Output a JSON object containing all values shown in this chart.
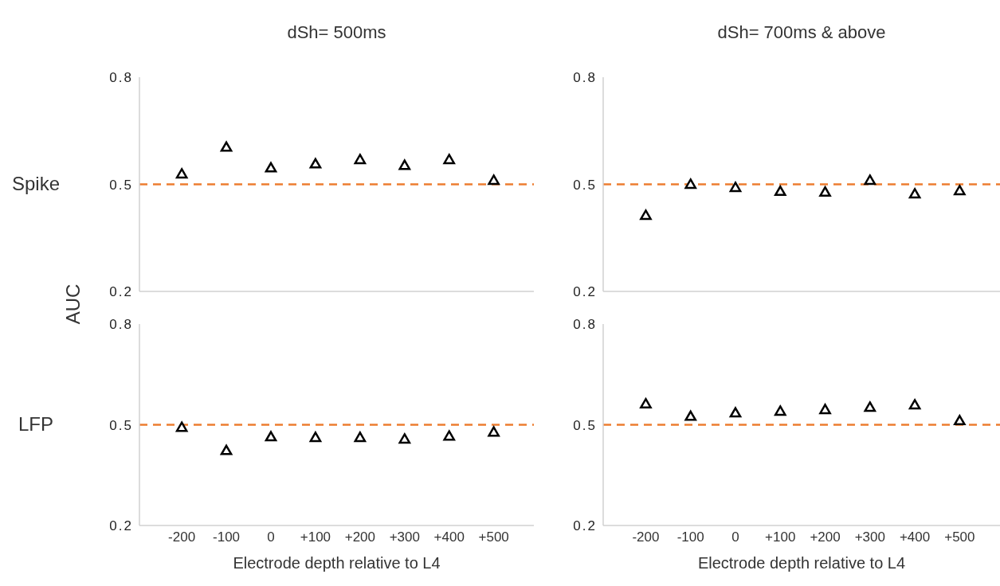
{
  "chart_data": [
    {
      "type": "scatter",
      "title": "dSh= 500ms",
      "ylabel": "AUC",
      "annotations": [
        "Spike"
      ],
      "categories": [
        "-200",
        "-100",
        "0",
        "+100",
        "+200",
        "+300",
        "+400",
        "+500"
      ],
      "series": [
        {
          "color": "#000000",
          "values": [
            0.527,
            0.602,
            0.544,
            0.555,
            0.567,
            0.551,
            0.567,
            0.509
          ]
        }
      ],
      "ylim": [
        0.2,
        0.8
      ],
      "yticks": [
        0.2,
        0.5,
        0.8
      ],
      "ref_lines": [
        {
          "axis": "y",
          "value": 0.5,
          "color": "#ed7d31",
          "line_style": "dashed"
        }
      ],
      "marker": "triangle",
      "tick_labels": "y",
      "grid": false,
      "legend": false
    },
    {
      "type": "scatter",
      "title": "dSh= 700ms & above",
      "categories": [
        "-200",
        "-100",
        "0",
        "+100",
        "+200",
        "+300",
        "+400",
        "+500"
      ],
      "series": [
        {
          "color": "#000000",
          "values": [
            0.411,
            0.498,
            0.489,
            0.478,
            0.476,
            0.509,
            0.471,
            0.48
          ]
        }
      ],
      "ylim": [
        0.2,
        0.8
      ],
      "yticks": [
        0.2,
        0.5,
        0.8
      ],
      "ref_lines": [
        {
          "axis": "y",
          "value": 0.5,
          "color": "#ed7d31",
          "line_style": "dashed"
        }
      ],
      "marker": "triangle",
      "tick_labels": "y",
      "grid": false,
      "legend": false
    },
    {
      "type": "scatter",
      "xlabel": "Electrode depth relative to L4",
      "annotations": [
        "LFP"
      ],
      "categories": [
        "-200",
        "-100",
        "0",
        "+100",
        "+200",
        "+300",
        "+400",
        "+500"
      ],
      "series": [
        {
          "color": "#000000",
          "values": [
            0.49,
            0.421,
            0.462,
            0.46,
            0.46,
            0.455,
            0.464,
            0.476
          ]
        }
      ],
      "ylim": [
        0.2,
        0.8
      ],
      "yticks": [
        0.2,
        0.5,
        0.8
      ],
      "ref_lines": [
        {
          "axis": "y",
          "value": 0.5,
          "color": "#ed7d31",
          "line_style": "dashed"
        }
      ],
      "marker": "triangle",
      "grid": false,
      "legend": false
    },
    {
      "type": "scatter",
      "xlabel": "Electrode depth relative to L4",
      "categories": [
        "-200",
        "-100",
        "0",
        "+100",
        "+200",
        "+300",
        "+400",
        "+500"
      ],
      "series": [
        {
          "color": "#000000",
          "values": [
            0.56,
            0.523,
            0.533,
            0.538,
            0.543,
            0.55,
            0.557,
            0.51
          ]
        }
      ],
      "ylim": [
        0.2,
        0.8
      ],
      "yticks": [
        0.2,
        0.5,
        0.8
      ],
      "ref_lines": [
        {
          "axis": "y",
          "value": 0.5,
          "color": "#ed7d31",
          "line_style": "dashed"
        }
      ],
      "marker": "triangle",
      "grid": false,
      "legend": false
    }
  ]
}
